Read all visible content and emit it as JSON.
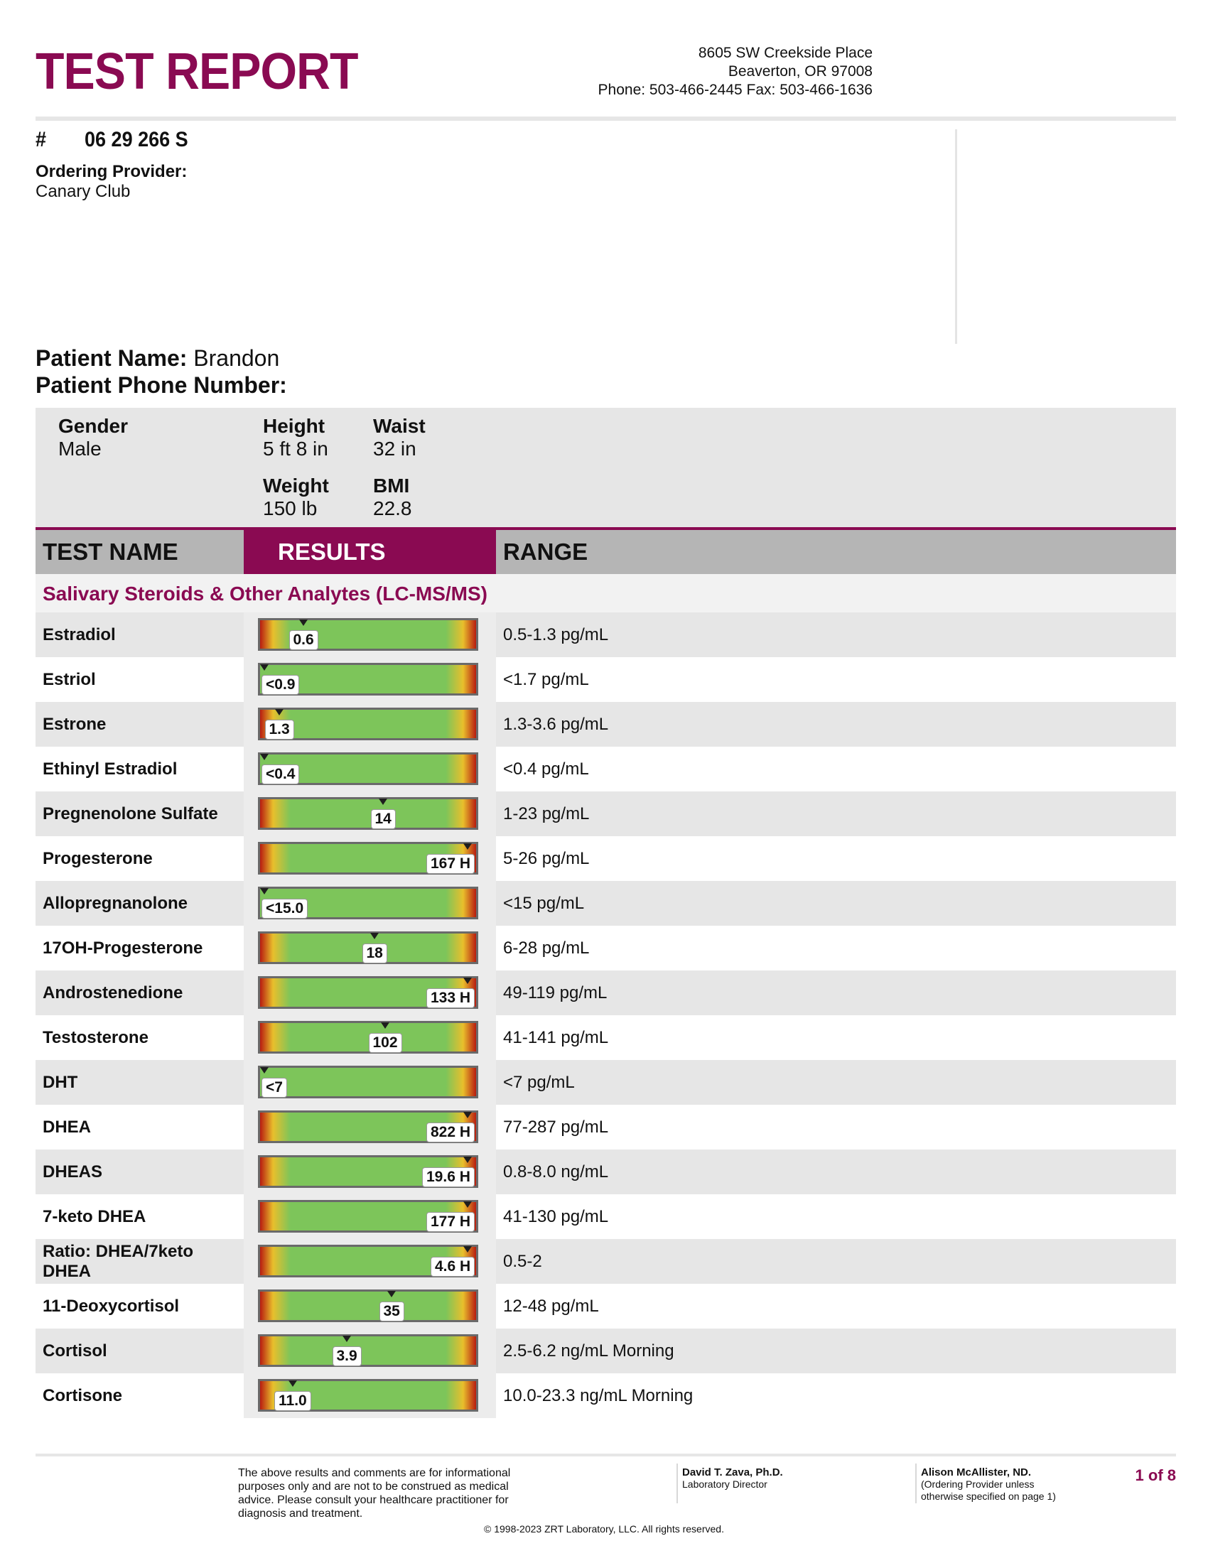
{
  "header": {
    "title": "TEST REPORT",
    "address_line1": "8605 SW Creekside Place",
    "address_line2": "Beaverton, OR 97008",
    "address_line3": "Phone: 503-466-2445 Fax: 503-466-1636"
  },
  "account": {
    "hash": "#",
    "number": "06 29 266 S",
    "provider_label": "Ordering Provider:",
    "provider": "Canary Club"
  },
  "patient": {
    "name_label": "Patient Name:",
    "name": "Brandon",
    "phone_label": "Patient Phone Number:"
  },
  "demographics": {
    "gender_label": "Gender",
    "gender": "Male",
    "height_label": "Height",
    "height": "5 ft 8 in",
    "waist_label": "Waist",
    "waist": "32 in",
    "weight_label": "Weight",
    "weight": "150 lb",
    "bmi_label": "BMI",
    "bmi": "22.8"
  },
  "table": {
    "col_test": "TEST NAME",
    "col_results": "RESULTS",
    "col_range": "RANGE",
    "section": "Salivary Steroids & Other Analytes (LC-MS/MS)",
    "rows": [
      {
        "name": "Estradiol",
        "result": "0.6",
        "range": "0.5-1.3 pg/mL",
        "marker": 0.2,
        "scale": "two-sided"
      },
      {
        "name": "Estriol",
        "result": "<0.9",
        "range": "<1.7 pg/mL",
        "marker": 0.02,
        "scale": "upper"
      },
      {
        "name": "Estrone",
        "result": "1.3",
        "range": "1.3-3.6 pg/mL",
        "marker": 0.09,
        "scale": "two-sided"
      },
      {
        "name": "Ethinyl Estradiol",
        "result": "<0.4",
        "range": "<0.4 pg/mL",
        "marker": 0.02,
        "scale": "upper"
      },
      {
        "name": "Pregnenolone Sulfate",
        "result": "14",
        "range": "1-23 pg/mL",
        "marker": 0.57,
        "scale": "two-sided"
      },
      {
        "name": "Progesterone",
        "result": "167 H",
        "range": "5-26 pg/mL",
        "marker": 0.96,
        "scale": "two-sided"
      },
      {
        "name": "Allopregnanolone",
        "result": "<15.0",
        "range": "<15 pg/mL",
        "marker": 0.02,
        "scale": "upper"
      },
      {
        "name": "17OH-Progesterone",
        "result": "18",
        "range": "6-28 pg/mL",
        "marker": 0.53,
        "scale": "two-sided"
      },
      {
        "name": "Androstenedione",
        "result": "133 H",
        "range": "49-119 pg/mL",
        "marker": 0.96,
        "scale": "two-sided"
      },
      {
        "name": "Testosterone",
        "result": "102",
        "range": "41-141 pg/mL",
        "marker": 0.58,
        "scale": "two-sided"
      },
      {
        "name": "DHT",
        "result": "<7",
        "range": "<7 pg/mL",
        "marker": 0.02,
        "scale": "upper"
      },
      {
        "name": "DHEA",
        "result": "822 H",
        "range": "77-287 pg/mL",
        "marker": 0.96,
        "scale": "two-sided"
      },
      {
        "name": "DHEAS",
        "result": "19.6 H",
        "range": "0.8-8.0 ng/mL",
        "marker": 0.96,
        "scale": "two-sided"
      },
      {
        "name": "7-keto DHEA",
        "result": "177 H",
        "range": "41-130 pg/mL",
        "marker": 0.96,
        "scale": "two-sided"
      },
      {
        "name": "Ratio: DHEA/7keto DHEA",
        "result": "4.6 H",
        "range": "0.5-2",
        "marker": 0.96,
        "scale": "two-sided"
      },
      {
        "name": "11-Deoxycortisol",
        "result": "35",
        "range": "12-48 pg/mL",
        "marker": 0.61,
        "scale": "two-sided"
      },
      {
        "name": "Cortisol",
        "result": "3.9",
        "range": "2.5-6.2 ng/mL Morning",
        "marker": 0.4,
        "scale": "two-sided"
      },
      {
        "name": "Cortisone",
        "result": "11.0",
        "range": "10.0-23.3 ng/mL Morning",
        "marker": 0.15,
        "scale": "two-sided"
      }
    ]
  },
  "footer": {
    "disclaimer": "The above results and comments are for informational purposes only and are not to be construed as medical advice. Please consult your healthcare practitioner for diagnosis and treatment.",
    "director_name": "David T. Zava, Ph.D.",
    "director_title": "Laboratory Director",
    "provider_name": "Alison McAllister, ND.",
    "provider_note": "(Ordering Provider unless otherwise specified on page 1)",
    "page": "1 of 8",
    "copyright": "© 1998-2023 ZRT Laboratory, LLC. All rights reserved."
  },
  "colors": {
    "brand": "#8a0a52",
    "bar_normal": "#7dc55a",
    "bar_warn": "#e8bf2c",
    "bar_alert": "#b81c10"
  }
}
